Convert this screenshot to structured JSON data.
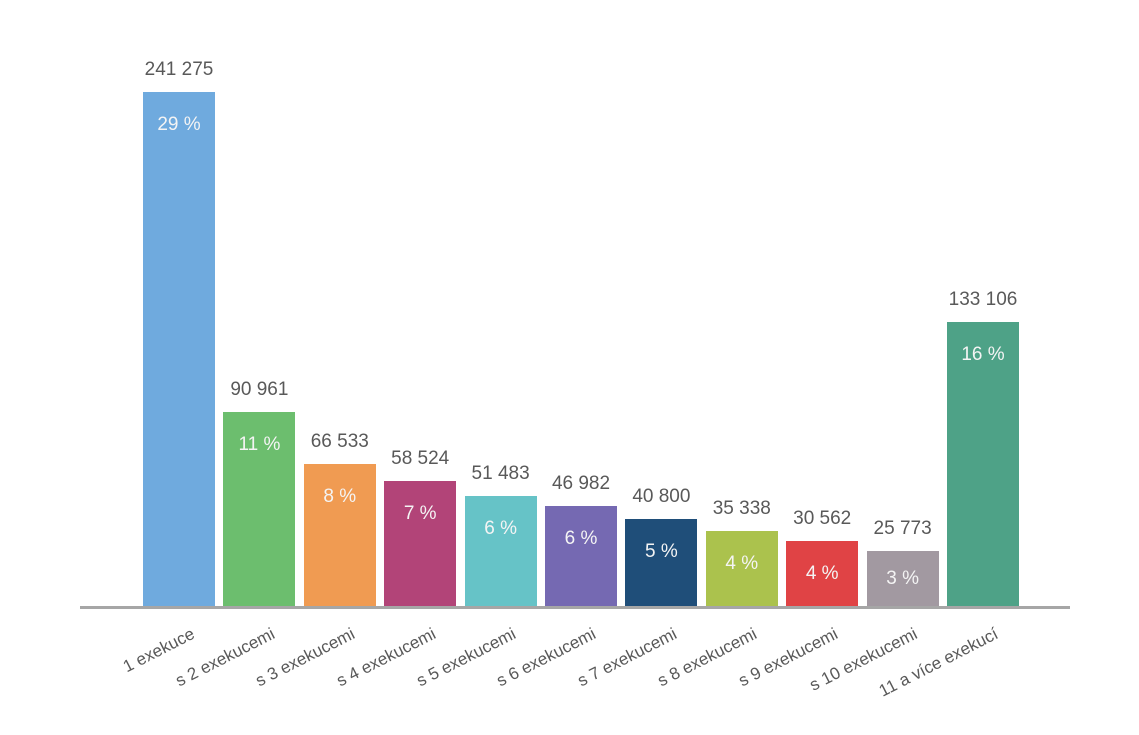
{
  "chart_data": {
    "type": "bar",
    "title": "",
    "xlabel": "",
    "ylabel": "",
    "ylim": [
      0,
      260000
    ],
    "grid": false,
    "legend": "none",
    "background_color": "#ffffff",
    "axis_line_color": "#a6a6a6",
    "value_label_color": "#595959",
    "percent_label_color": "#f4f4f4",
    "categories": [
      "1 exekuce",
      "s 2 exekucemi",
      "s 3 exekucemi",
      "s 4 exekucemi",
      "s 5 exekucemi",
      "s 6 exekucemi",
      "s 7 exekucemi",
      "s 8 exekucemi",
      "s 9 exekucemi",
      "s 10 exekucemi",
      "11 a více exekucí"
    ],
    "values": [
      241275,
      90961,
      66533,
      58524,
      51483,
      46982,
      40800,
      35338,
      30562,
      25773,
      133106
    ],
    "value_labels": [
      "241 275",
      "90 961",
      "66 533",
      "58 524",
      "51 483",
      "46 982",
      "40 800",
      "35 338",
      "30 562",
      "25 773",
      "133 106"
    ],
    "percent_labels": [
      "29 %",
      "11 %",
      "8 %",
      "7 %",
      "6 %",
      "6 %",
      "5 %",
      "4 %",
      "4 %",
      "3 %",
      "16 %"
    ],
    "bar_colors": [
      "#6faade",
      "#6cbe6e",
      "#f09b52",
      "#b24478",
      "#66c3c7",
      "#7569b2",
      "#1f4e79",
      "#abc24d",
      "#e04345",
      "#a299a1",
      "#4ea287"
    ]
  }
}
